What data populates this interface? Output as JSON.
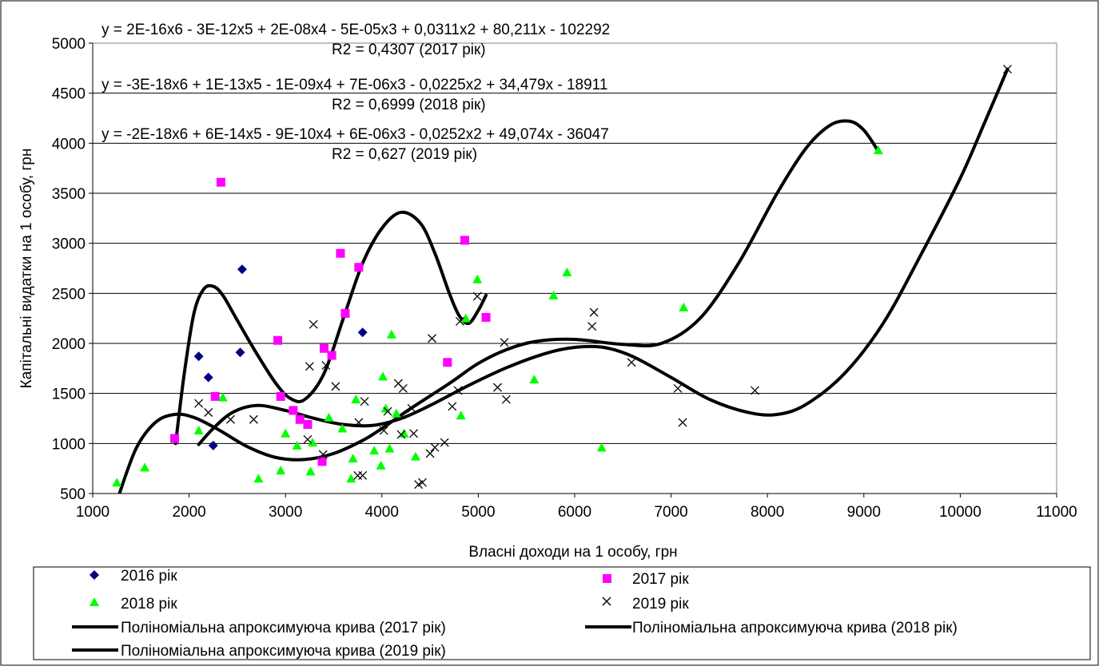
{
  "chart_data": {
    "type": "scatter",
    "title": "",
    "xlabel": "Власні доходи на 1 особу, грн",
    "ylabel": "Капітальні видатки на 1 особу, грн",
    "xlim": [
      1000,
      11000
    ],
    "ylim": [
      500,
      5000
    ],
    "xticks": [
      1000,
      2000,
      3000,
      4000,
      5000,
      6000,
      7000,
      8000,
      9000,
      10000,
      11000
    ],
    "yticks": [
      500,
      1000,
      1500,
      2000,
      2500,
      3000,
      3500,
      4000,
      4500,
      5000
    ],
    "grid": "horizontal",
    "legend_position": "bottom",
    "annotations": [
      "y = 2E-16x6 - 3E-12x5 + 2E-08x4 - 5E-05x3 + 0,0311x2 + 80,211x - 102292",
      "R2 = 0,4307 (2017 рік)",
      "y = -3E-18x6 + 1E-13x5 - 1E-09x4 + 7E-06x3 - 0,0225x2 + 34,479x - 18911",
      "R2 = 0,6999 (2018 рік)",
      "y = -2E-18x6 + 6E-14x5 - 9E-10x4 + 6E-06x3 - 0,0252x2 + 49,074x - 36047",
      "R2 = 0,627 (2019 рік)"
    ],
    "series": [
      {
        "name": "2016 рік",
        "marker": "diamond",
        "color": "#000080",
        "points": [
          [
            2100,
            1870
          ],
          [
            2200,
            1660
          ],
          [
            2250,
            980
          ],
          [
            2530,
            1910
          ],
          [
            2550,
            2740
          ],
          [
            3800,
            2110
          ]
        ]
      },
      {
        "name": "2017 рік",
        "marker": "square",
        "color": "#FF00FF",
        "points": [
          [
            1850,
            1050
          ],
          [
            2270,
            1470
          ],
          [
            2330,
            3610
          ],
          [
            2920,
            2030
          ],
          [
            2950,
            1470
          ],
          [
            3080,
            1330
          ],
          [
            3150,
            1240
          ],
          [
            3230,
            1190
          ],
          [
            3380,
            820
          ],
          [
            3400,
            1950
          ],
          [
            3480,
            1880
          ],
          [
            3570,
            2900
          ],
          [
            3620,
            2300
          ],
          [
            3760,
            2760
          ],
          [
            4680,
            1810
          ],
          [
            4860,
            3030
          ],
          [
            5080,
            2260
          ]
        ]
      },
      {
        "name": "2018 рік",
        "marker": "triangle",
        "color": "#00FF00",
        "points": [
          [
            1250,
            610
          ],
          [
            1540,
            760
          ],
          [
            2100,
            1130
          ],
          [
            2350,
            1460
          ],
          [
            2720,
            650
          ],
          [
            2950,
            730
          ],
          [
            3000,
            1100
          ],
          [
            3120,
            980
          ],
          [
            3260,
            720
          ],
          [
            3280,
            1010
          ],
          [
            3450,
            1260
          ],
          [
            3590,
            1150
          ],
          [
            3680,
            650
          ],
          [
            3700,
            850
          ],
          [
            3730,
            1440
          ],
          [
            3920,
            930
          ],
          [
            3990,
            780
          ],
          [
            4010,
            1670
          ],
          [
            4040,
            1350
          ],
          [
            4080,
            950
          ],
          [
            4100,
            2090
          ],
          [
            4150,
            1300
          ],
          [
            4230,
            1100
          ],
          [
            4350,
            870
          ],
          [
            4820,
            1280
          ],
          [
            4870,
            2250
          ],
          [
            4990,
            2640
          ],
          [
            5580,
            1640
          ],
          [
            5780,
            2480
          ],
          [
            5920,
            2710
          ],
          [
            6280,
            960
          ],
          [
            7130,
            2360
          ],
          [
            9150,
            3930
          ]
        ]
      },
      {
        "name": "2019 рік",
        "marker": "x",
        "color": "#000000",
        "points": [
          [
            2100,
            1400
          ],
          [
            2200,
            1310
          ],
          [
            2430,
            1240
          ],
          [
            2670,
            1240
          ],
          [
            3230,
            1040
          ],
          [
            3250,
            1770
          ],
          [
            3290,
            2190
          ],
          [
            3390,
            890
          ],
          [
            3420,
            1780
          ],
          [
            3520,
            1570
          ],
          [
            3750,
            680
          ],
          [
            3760,
            1210
          ],
          [
            3800,
            680
          ],
          [
            3820,
            1420
          ],
          [
            4020,
            1130
          ],
          [
            4060,
            1320
          ],
          [
            4170,
            1600
          ],
          [
            4200,
            1090
          ],
          [
            4220,
            1550
          ],
          [
            4310,
            1350
          ],
          [
            4330,
            1100
          ],
          [
            4380,
            590
          ],
          [
            4420,
            610
          ],
          [
            4500,
            900
          ],
          [
            4520,
            2050
          ],
          [
            4550,
            960
          ],
          [
            4650,
            1010
          ],
          [
            4730,
            1370
          ],
          [
            4790,
            1530
          ],
          [
            4810,
            2220
          ],
          [
            4990,
            2470
          ],
          [
            5200,
            1560
          ],
          [
            5270,
            2010
          ],
          [
            5290,
            1440
          ],
          [
            6180,
            2170
          ],
          [
            6200,
            2310
          ],
          [
            6590,
            1810
          ],
          [
            7070,
            1550
          ],
          [
            7120,
            1210
          ],
          [
            7870,
            1530
          ],
          [
            10490,
            4740
          ]
        ]
      }
    ],
    "trendlines": [
      {
        "name": "Поліноміальна апроксимуюча крива (2017 рік)",
        "color": "#000000",
        "points": [
          [
            1860,
            1000
          ],
          [
            1950,
            1700
          ],
          [
            2050,
            2300
          ],
          [
            2150,
            2540
          ],
          [
            2250,
            2570
          ],
          [
            2350,
            2480
          ],
          [
            2500,
            2230
          ],
          [
            2700,
            1900
          ],
          [
            2900,
            1600
          ],
          [
            3050,
            1450
          ],
          [
            3200,
            1440
          ],
          [
            3400,
            1700
          ],
          [
            3600,
            2250
          ],
          [
            3800,
            2800
          ],
          [
            4000,
            3150
          ],
          [
            4200,
            3310
          ],
          [
            4400,
            3200
          ],
          [
            4550,
            2900
          ],
          [
            4700,
            2500
          ],
          [
            4800,
            2280
          ],
          [
            4900,
            2200
          ],
          [
            5000,
            2330
          ],
          [
            5080,
            2480
          ]
        ]
      },
      {
        "name": "Поліноміальна апроксимуюча крива (2018 рік)",
        "color": "#000000",
        "points": [
          [
            1270,
            480
          ],
          [
            1450,
            950
          ],
          [
            1650,
            1210
          ],
          [
            1850,
            1290
          ],
          [
            2050,
            1260
          ],
          [
            2300,
            1140
          ],
          [
            2600,
            970
          ],
          [
            2900,
            860
          ],
          [
            3200,
            840
          ],
          [
            3500,
            900
          ],
          [
            3800,
            1030
          ],
          [
            4000,
            1150
          ],
          [
            4300,
            1350
          ],
          [
            4700,
            1600
          ],
          [
            5000,
            1800
          ],
          [
            5300,
            1940
          ],
          [
            5600,
            2020
          ],
          [
            6000,
            2040
          ],
          [
            6500,
            1990
          ],
          [
            6900,
            2000
          ],
          [
            7300,
            2250
          ],
          [
            7700,
            2800
          ],
          [
            8100,
            3500
          ],
          [
            8400,
            3950
          ],
          [
            8650,
            4180
          ],
          [
            8850,
            4220
          ],
          [
            9000,
            4130
          ],
          [
            9150,
            3920
          ]
        ]
      },
      {
        "name": "Поліноміальна апроксимуюча крива (2019 рік)",
        "color": "#000000",
        "points": [
          [
            2100,
            990
          ],
          [
            2250,
            1150
          ],
          [
            2450,
            1310
          ],
          [
            2700,
            1380
          ],
          [
            3000,
            1330
          ],
          [
            3300,
            1250
          ],
          [
            3600,
            1190
          ],
          [
            3900,
            1180
          ],
          [
            4200,
            1250
          ],
          [
            4500,
            1380
          ],
          [
            4900,
            1580
          ],
          [
            5300,
            1760
          ],
          [
            5700,
            1900
          ],
          [
            6000,
            1960
          ],
          [
            6300,
            1960
          ],
          [
            6600,
            1870
          ],
          [
            7000,
            1660
          ],
          [
            7400,
            1440
          ],
          [
            7800,
            1310
          ],
          [
            8100,
            1290
          ],
          [
            8400,
            1390
          ],
          [
            8800,
            1700
          ],
          [
            9200,
            2200
          ],
          [
            9600,
            2900
          ],
          [
            10000,
            3650
          ],
          [
            10250,
            4200
          ],
          [
            10490,
            4740
          ]
        ]
      }
    ]
  }
}
